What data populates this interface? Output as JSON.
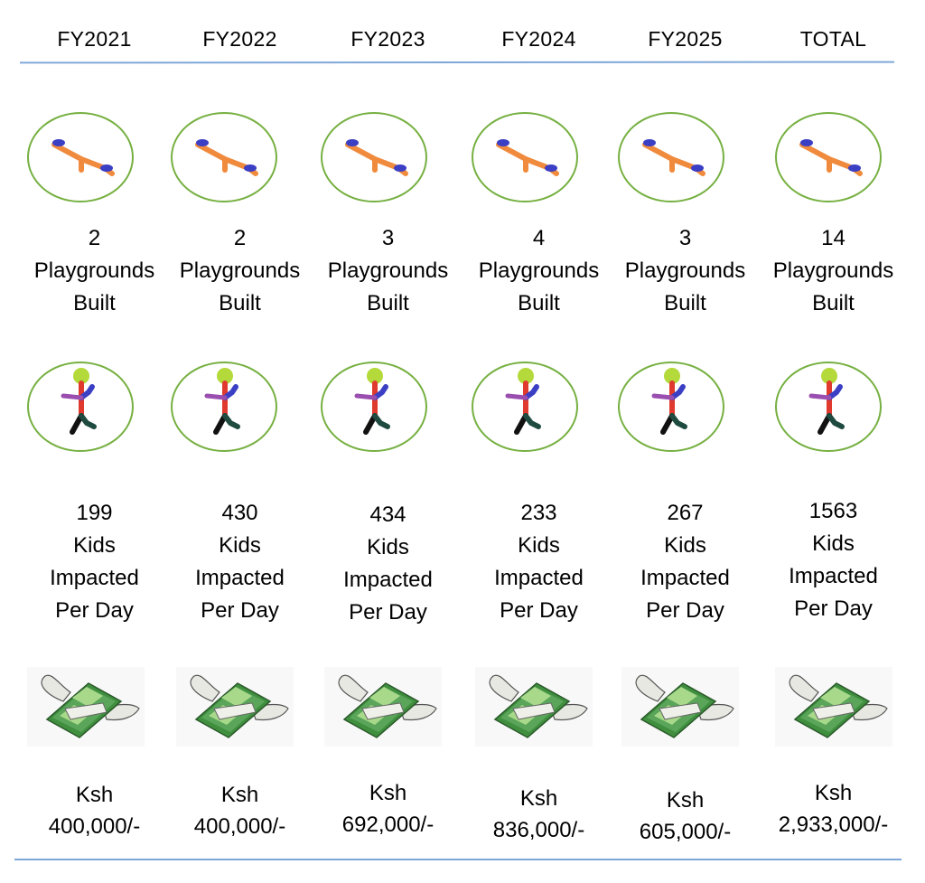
{
  "columns": [
    {
      "year": "FY2021",
      "playgrounds": "2",
      "playgrounds_label_1": "Playgrounds",
      "playgrounds_label_2": "Built",
      "kids": "199",
      "kids_label_1": "Kids",
      "kids_label_2": "Impacted",
      "kids_label_3": "Per Day",
      "currency": "Ksh",
      "amount": "400,000/-"
    },
    {
      "year": "FY2022",
      "playgrounds": "2",
      "playgrounds_label_1": "Playgrounds",
      "playgrounds_label_2": "Built",
      "kids": "430",
      "kids_label_1": "Kids",
      "kids_label_2": "Impacted",
      "kids_label_3": "Per Day",
      "currency": "Ksh",
      "amount": "400,000/-"
    },
    {
      "year": "FY2023",
      "playgrounds": "3",
      "playgrounds_label_1": "Playgrounds",
      "playgrounds_label_2": "Built",
      "kids": "434",
      "kids_label_1": "Kids",
      "kids_label_2": "Impacted",
      "kids_label_3": "Per Day",
      "currency": "Ksh",
      "amount": "692,000/-"
    },
    {
      "year": "FY2024",
      "playgrounds": "4",
      "playgrounds_label_1": "Playgrounds",
      "playgrounds_label_2": "Built",
      "kids": "233",
      "kids_label_1": "Kids",
      "kids_label_2": "Impacted",
      "kids_label_3": "Per Day",
      "currency": "Ksh",
      "amount": "836,000/-"
    },
    {
      "year": "FY2025",
      "playgrounds": "3",
      "playgrounds_label_1": "Playgrounds",
      "playgrounds_label_2": "Built",
      "kids": "267",
      "kids_label_1": "Kids",
      "kids_label_2": "Impacted",
      "kids_label_3": "Per Day",
      "currency": "Ksh",
      "amount": "605,000/-"
    },
    {
      "year": "TOTAL",
      "playgrounds": "14",
      "playgrounds_label_1": "Playgrounds",
      "playgrounds_label_2": "Built",
      "kids": "1563",
      "kids_label_1": "Kids",
      "kids_label_2": "Impacted",
      "kids_label_3": "Per Day",
      "currency": "Ksh",
      "amount": "2,933,000/-"
    }
  ],
  "icons": {
    "playground": "seesaw-icon",
    "kids": "stick-figure-icon",
    "money": "flying-money-icon"
  },
  "colors": {
    "rule": "#7fa7d9",
    "circle": "#76b041",
    "seesaw": "#f08a3c",
    "seesaw_seat": "#3b3fc4",
    "money_dark": "#3f8f3f",
    "money_light": "#a8d98a"
  }
}
